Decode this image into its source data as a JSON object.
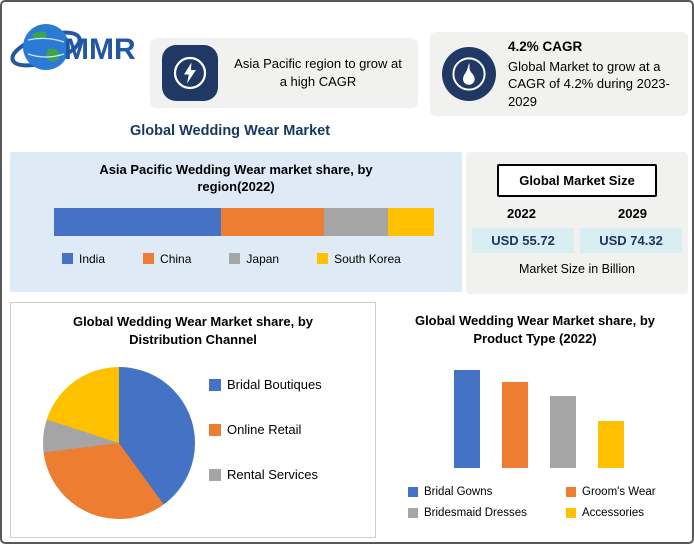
{
  "header": {
    "logo_text": "MMR",
    "callout_left": {
      "icon": "bolt-icon",
      "text": "Asia Pacific region to grow at a high CAGR"
    },
    "callout_right": {
      "icon": "flame-icon",
      "title": "4.2% CAGR",
      "text": "Global Market to grow at a CAGR of 4.2% during 2023-2029"
    }
  },
  "page_title": "Global Wedding Wear Market",
  "market_size": {
    "title": "Global Market Size",
    "year_left": "2022",
    "year_right": "2029",
    "value_left": "USD 55.72",
    "value_right": "USD 74.32",
    "caption": "Market Size in Billion"
  },
  "colors": {
    "blue": "#4472C4",
    "orange": "#ED7D31",
    "gray": "#A5A5A5",
    "yellow": "#FFC000",
    "navy_icon": "#203864",
    "title_blue": "#17375E",
    "region_bg": "#DEEBF7",
    "callout_bg": "#F1F1EF",
    "value_box_bg": "#D9EEF3"
  },
  "chart_data": [
    {
      "id": "region_share",
      "type": "bar",
      "variant": "horizontal-stacked",
      "title": "Asia Pacific Wedding Wear  market share, by region(2022)",
      "categories": [
        "India",
        "China",
        "Japan",
        "South Korea"
      ],
      "values": [
        44,
        27,
        17,
        12
      ],
      "value_note": "estimated % of bar length; no numeric labels shown in image",
      "colors": [
        "#4472C4",
        "#ED7D31",
        "#A5A5A5",
        "#FFC000"
      ],
      "legend_position": "bottom"
    },
    {
      "id": "distribution_channel",
      "type": "pie",
      "title": "Global Wedding Wear Market share, by Distribution Channel",
      "slice_labels": [
        "Bridal Boutiques",
        "Online Retail",
        "Rental Services",
        ""
      ],
      "values": [
        40,
        33,
        7,
        20
      ],
      "value_note": "estimated % from slice angles; no numeric labels shown in image",
      "colors": [
        "#4472C4",
        "#ED7D31",
        "#A5A5A5",
        "#FFC000"
      ],
      "legend": [
        "Bridal Boutiques",
        "Online Retail",
        "Rental Services"
      ],
      "legend_position": "right"
    },
    {
      "id": "product_type",
      "type": "bar",
      "variant": "vertical",
      "title": "Global Wedding Wear Market share, by Product Type (2022)",
      "categories": [
        "Bridal Gowns",
        "Groom's Wear",
        "Bridesmaid Dresses",
        "Accessories"
      ],
      "values": [
        100,
        88,
        73,
        48
      ],
      "value_note": "relative bar heights (max=100); no axis or numeric labels shown in image",
      "colors": [
        "#4472C4",
        "#ED7D31",
        "#A5A5A5",
        "#FFC000"
      ],
      "legend_position": "bottom"
    }
  ]
}
